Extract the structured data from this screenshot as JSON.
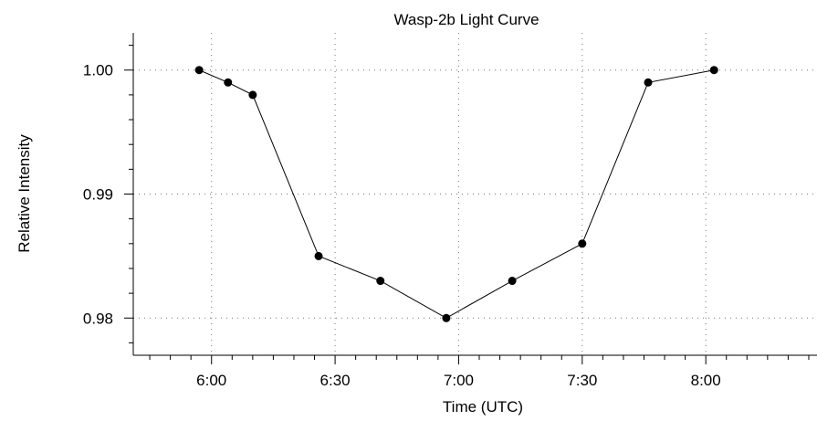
{
  "chart_data": {
    "type": "line",
    "title": "Wasp-2b Light Curve",
    "xlabel": "Time (UTC)",
    "ylabel": "Relative Intensity",
    "x_unit": "minutes after 0:00 UTC",
    "xlim": [
      341,
      507
    ],
    "ylim": [
      0.977,
      1.003
    ],
    "x_ticks": [
      {
        "value": 360,
        "label": "6:00"
      },
      {
        "value": 390,
        "label": "6:30"
      },
      {
        "value": 420,
        "label": "7:00"
      },
      {
        "value": 450,
        "label": "7:30"
      },
      {
        "value": 480,
        "label": "8:00"
      }
    ],
    "y_ticks": [
      {
        "value": 1.0,
        "label": "1.00"
      },
      {
        "value": 0.99,
        "label": "0.99"
      },
      {
        "value": 0.98,
        "label": "0.98"
      }
    ],
    "grid": true,
    "series": [
      {
        "x": [
          357,
          364,
          370,
          386,
          401,
          417,
          433,
          450,
          466,
          482
        ],
        "y": [
          1.0,
          0.999,
          0.998,
          0.985,
          0.983,
          0.98,
          0.983,
          0.986,
          0.999,
          1.0
        ]
      }
    ]
  }
}
